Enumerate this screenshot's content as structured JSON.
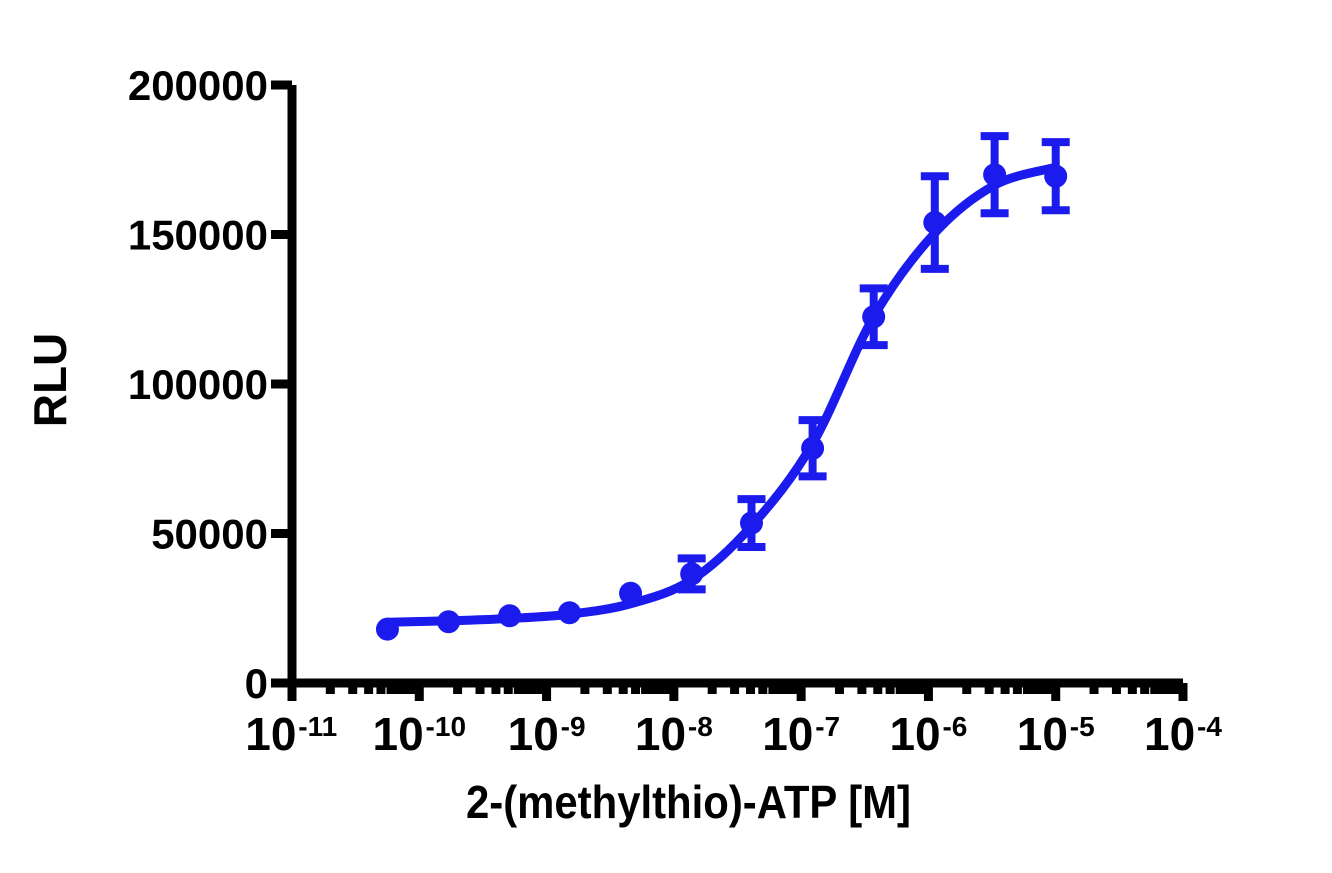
{
  "figure": {
    "background_color": "#ffffff",
    "axis_color": "#000000",
    "series_color": "#1b1bee"
  },
  "chart_data": {
    "type": "scatter",
    "subtype": "dose-response curve with error bars and sigmoidal fit",
    "title": "",
    "xlabel": "2-(methylthio)-ATP [M]",
    "ylabel": "RLU",
    "x_scale": "log10",
    "xlim": [
      1e-11,
      0.0001
    ],
    "ylim": [
      0,
      200000
    ],
    "grid": false,
    "legend": false,
    "y_ticks": [
      0,
      50000,
      100000,
      150000,
      200000
    ],
    "y_tick_labels": [
      "0",
      "50000",
      "100000",
      "150000",
      "200000"
    ],
    "x_major_tick_exponents": [
      -11,
      -10,
      -9,
      -8,
      -7,
      -6,
      -5,
      -4
    ],
    "x_tick_label_base": "10",
    "x_minor_ticks": "log-decade minors at 2..9 between each labeled decade",
    "series": [
      {
        "name": "2-(methylthio)-ATP",
        "marker": "filled-circle",
        "color": "#1b1bee",
        "error_bar_style": "capped, plus/minus SEM",
        "points": [
          {
            "conc_m": 5.6e-11,
            "log_conc": -10.25,
            "rlu": 18000,
            "sem": null
          },
          {
            "conc_m": 1.7e-10,
            "log_conc": -9.77,
            "rlu": 20500,
            "sem": null
          },
          {
            "conc_m": 5.1e-10,
            "log_conc": -9.29,
            "rlu": 22500,
            "sem": null
          },
          {
            "conc_m": 1.5e-09,
            "log_conc": -8.82,
            "rlu": 23500,
            "sem": null
          },
          {
            "conc_m": 4.6e-09,
            "log_conc": -8.34,
            "rlu": 30000,
            "sem": null
          },
          {
            "conc_m": 1.4e-08,
            "log_conc": -7.86,
            "rlu": 36500,
            "sem": 5200
          },
          {
            "conc_m": 4.1e-08,
            "log_conc": -7.39,
            "rlu": 53500,
            "sem": 8000
          },
          {
            "conc_m": 1.2e-07,
            "log_conc": -6.91,
            "rlu": 78500,
            "sem": 9400
          },
          {
            "conc_m": 3.7e-07,
            "log_conc": -6.43,
            "rlu": 122500,
            "sem": 9500
          },
          {
            "conc_m": 1.1e-06,
            "log_conc": -5.95,
            "rlu": 154000,
            "sem": 15500
          },
          {
            "conc_m": 3.3e-06,
            "log_conc": -5.48,
            "rlu": 170000,
            "sem": 12900
          },
          {
            "conc_m": 1e-05,
            "log_conc": -5.0,
            "rlu": 169500,
            "sem": 11400
          }
        ]
      }
    ],
    "fit_curve": {
      "model": "four-parameter logistic (sigmoidal dose-response)",
      "color": "#1b1bee",
      "anchors": [
        {
          "log_conc": -10.25,
          "rlu": 20300
        },
        {
          "log_conc": -9.77,
          "rlu": 20800
        },
        {
          "log_conc": -9.29,
          "rlu": 21600
        },
        {
          "log_conc": -8.82,
          "rlu": 23000
        },
        {
          "log_conc": -8.34,
          "rlu": 26500
        },
        {
          "log_conc": -7.86,
          "rlu": 34500
        },
        {
          "log_conc": -7.39,
          "rlu": 52500
        },
        {
          "log_conc": -6.91,
          "rlu": 80000
        },
        {
          "log_conc": -6.43,
          "rlu": 122500
        },
        {
          "log_conc": -5.95,
          "rlu": 150500
        },
        {
          "log_conc": -5.48,
          "rlu": 166500
        },
        {
          "log_conc": -5.0,
          "rlu": 172500
        }
      ]
    }
  }
}
